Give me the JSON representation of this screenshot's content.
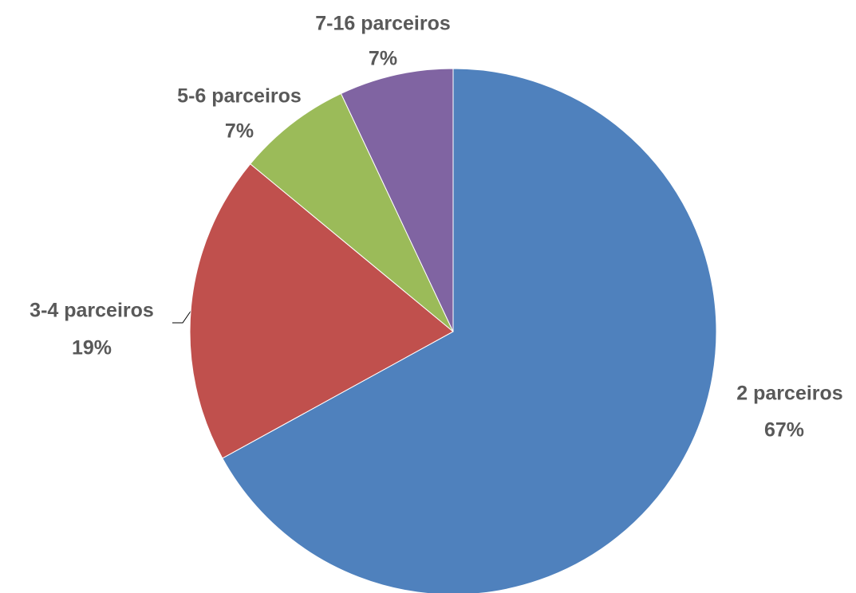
{
  "chart_data": {
    "type": "pie",
    "categories": [
      "2 parceiros",
      "3-4 parceiros",
      "5-6 parceiros",
      "7-16 parceiros"
    ],
    "values": [
      67,
      19,
      7,
      7
    ],
    "value_labels": [
      "67%",
      "19%",
      "7%",
      "7%"
    ],
    "colors": [
      "#4f81bd",
      "#c0504d",
      "#9bbb59",
      "#8064a2"
    ]
  }
}
